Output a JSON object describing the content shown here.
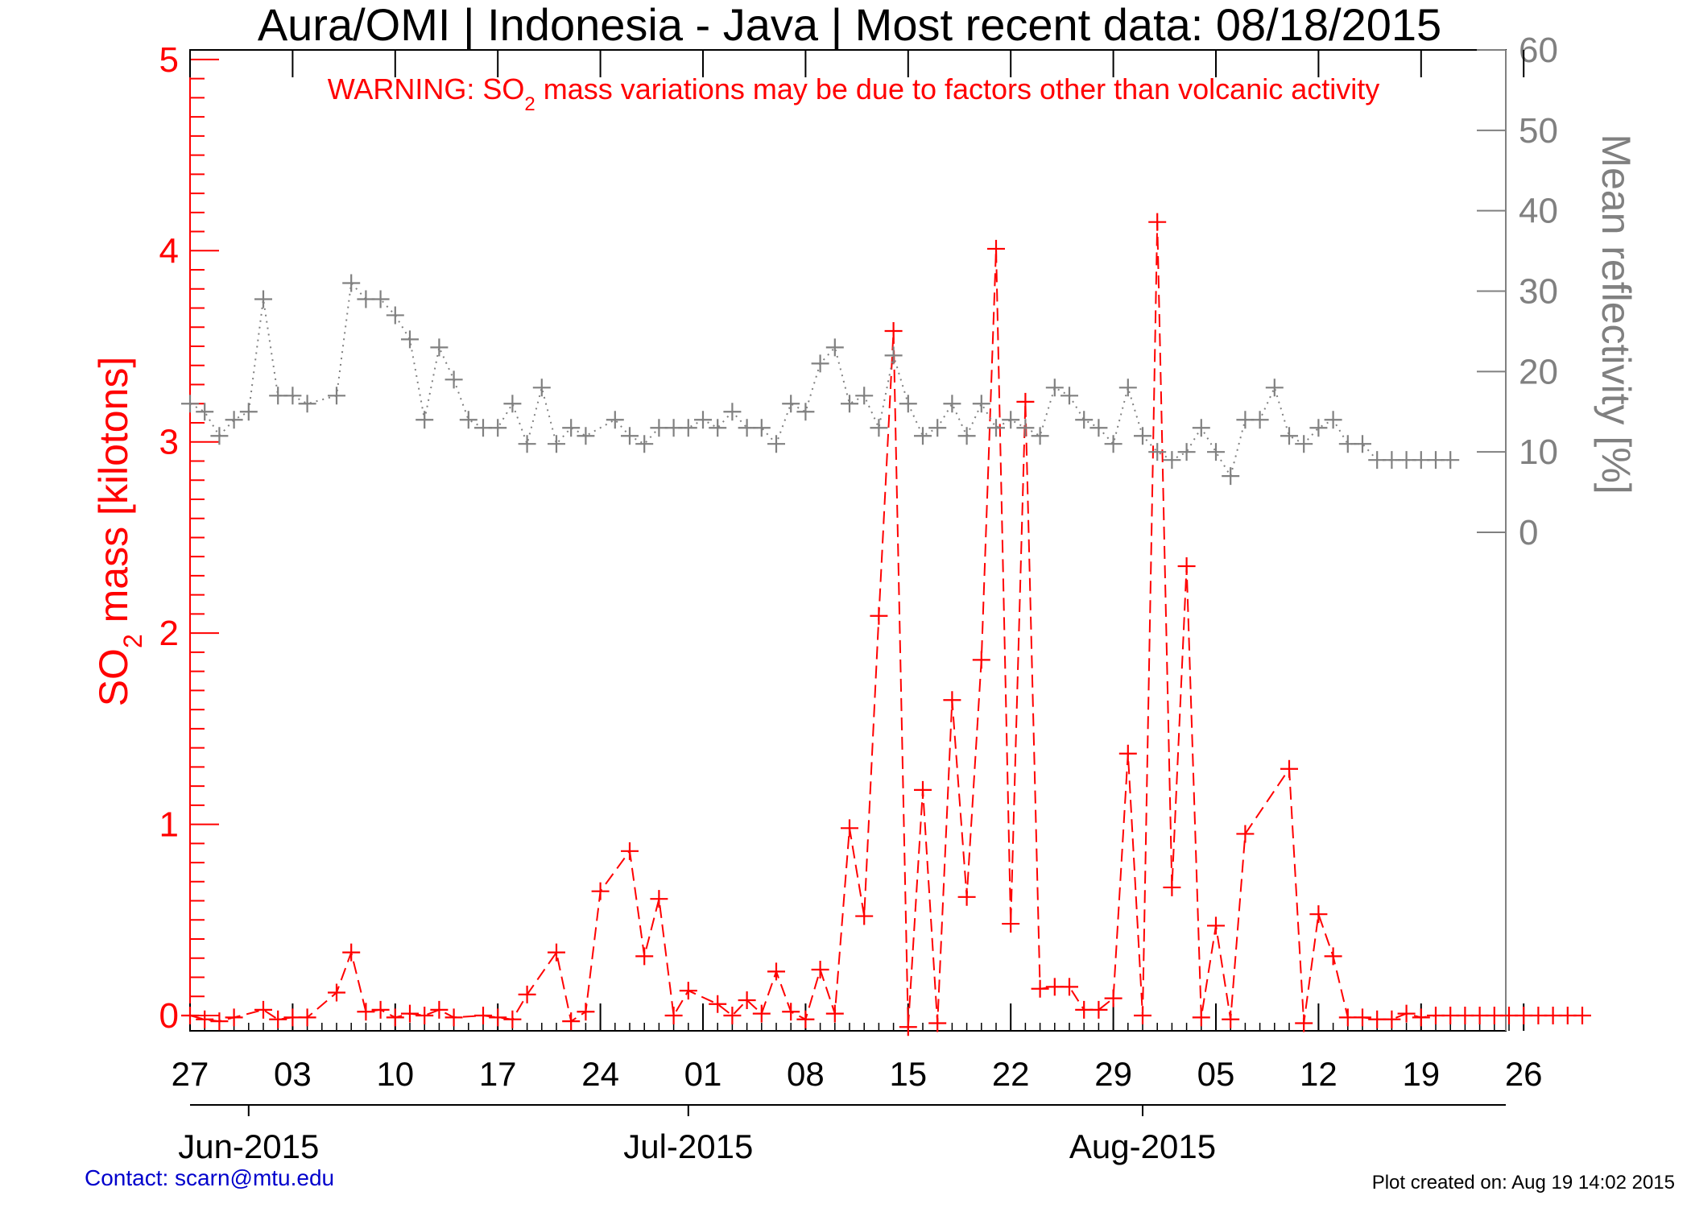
{
  "chart_data": {
    "type": "line",
    "title": "Aura/OMI | Indonesia - Java | Most recent data: 08/18/2015",
    "warning": {
      "prefix": "WARNING: SO",
      "sub": "2",
      "suffix": " mass variations may be due to factors other than volcanic activity"
    },
    "ylabel_left": {
      "prefix": "SO",
      "sub": "2",
      "suffix": " mass [kilotons]"
    },
    "ylabel_right": "Mean reflectivity [%]",
    "ylim_left": [
      -0.08,
      5.05
    ],
    "ylim_right": [
      -62,
      60
    ],
    "left_ticks": [
      "0",
      "1",
      "2",
      "3",
      "4",
      "5"
    ],
    "right_ticks": [
      "0",
      "10",
      "20",
      "30",
      "40",
      "50",
      "60"
    ],
    "x_tick_labels": [
      "27",
      "03",
      "10",
      "17",
      "24",
      "01",
      "08",
      "15",
      "22",
      "29",
      "05",
      "12",
      "19",
      "26"
    ],
    "month_labels": [
      "Jun-2015",
      "Jul-2015",
      "Aug-2015"
    ],
    "colors": {
      "so2": "#ff0000",
      "reflectivity": "#808080",
      "axis_left": "#ff0000",
      "axis_right": "#808080"
    },
    "series": [
      {
        "name": "SO2 mass",
        "axis": "left",
        "style": "dashed",
        "x": [
          0,
          1,
          2,
          3,
          5,
          6,
          7,
          8,
          10,
          11,
          12,
          13,
          14,
          15,
          16,
          17,
          18,
          20,
          21,
          22,
          23,
          25,
          26,
          27,
          28,
          30,
          31,
          32,
          33,
          34,
          36,
          37,
          38,
          39,
          40,
          41,
          42,
          43,
          44,
          45,
          46,
          47,
          48,
          49,
          50,
          51,
          52,
          53,
          54,
          55,
          56,
          57,
          58,
          59,
          60,
          61,
          62,
          63,
          64,
          65,
          66,
          67,
          68,
          69,
          70,
          71,
          72,
          75,
          76,
          77,
          78,
          79,
          80,
          81,
          82,
          83,
          84,
          85,
          86,
          87,
          88,
          89,
          90,
          91,
          92,
          93,
          94,
          95
        ],
        "values": [
          0.0,
          -0.02,
          -0.03,
          -0.01,
          0.03,
          -0.02,
          -0.01,
          -0.01,
          0.12,
          0.33,
          0.02,
          0.03,
          -0.01,
          0.01,
          0.0,
          0.03,
          -0.01,
          0.0,
          -0.01,
          -0.02,
          0.11,
          0.33,
          -0.03,
          0.02,
          0.65,
          0.86,
          0.31,
          0.61,
          0.0,
          0.13,
          0.06,
          0.0,
          0.08,
          0.01,
          0.23,
          0.02,
          -0.02,
          0.24,
          0.01,
          0.98,
          0.52,
          2.09,
          3.58,
          -0.06,
          1.18,
          -0.04,
          1.65,
          0.62,
          1.86,
          4.01,
          0.48,
          3.21,
          0.14,
          0.15,
          0.15,
          0.03,
          0.03,
          0.09,
          1.37,
          0.0,
          4.15,
          0.67,
          2.35,
          -0.01,
          0.47,
          -0.02,
          0.95,
          1.29,
          -0.04,
          0.53,
          0.31,
          -0.01,
          -0.01,
          -0.02,
          -0.02,
          0.01,
          -0.01,
          0.0,
          0.0,
          0.0,
          0.0,
          0.0,
          0.0,
          0.0,
          0.0,
          0.0,
          0.0,
          0.0
        ]
      },
      {
        "name": "Mean reflectivity",
        "axis": "right",
        "style": "dotted",
        "x": [
          0,
          1,
          2,
          3,
          4,
          5,
          6,
          7,
          8,
          10,
          11,
          12,
          13,
          14,
          15,
          16,
          17,
          18,
          19,
          20,
          21,
          22,
          23,
          24,
          25,
          26,
          27,
          29,
          30,
          31,
          32,
          33,
          34,
          35,
          36,
          37,
          38,
          39,
          40,
          41,
          42,
          43,
          44,
          45,
          46,
          47,
          48,
          49,
          50,
          51,
          52,
          53,
          54,
          55,
          56,
          57,
          58,
          59,
          60,
          61,
          62,
          63,
          64,
          65,
          66,
          67,
          68,
          69,
          70,
          71,
          72,
          73,
          74,
          75,
          76,
          77,
          78,
          79,
          80,
          81,
          82,
          83,
          84,
          85,
          86
        ],
        "values": [
          16,
          15,
          12,
          14,
          15,
          29,
          17,
          17,
          16,
          17,
          31,
          29,
          29,
          27,
          24,
          14,
          23,
          19,
          14,
          13,
          13,
          16,
          11,
          18,
          11,
          13,
          12,
          14,
          12,
          11,
          13,
          13,
          13,
          14,
          13,
          15,
          13,
          13,
          11,
          16,
          15,
          21,
          23,
          16,
          17,
          13,
          22,
          16,
          12,
          13,
          16,
          12,
          16,
          13,
          14,
          13,
          12,
          18,
          17,
          14,
          13,
          11,
          18,
          12,
          10,
          9,
          10,
          13,
          10,
          7,
          14,
          14,
          18,
          12,
          11,
          13,
          14,
          11,
          11,
          9,
          9,
          9,
          9,
          9,
          9
        ]
      }
    ]
  },
  "footer": {
    "contact": "Contact: scarn@mtu.edu",
    "created": "Plot created on: Aug 19 14:02 2015"
  }
}
